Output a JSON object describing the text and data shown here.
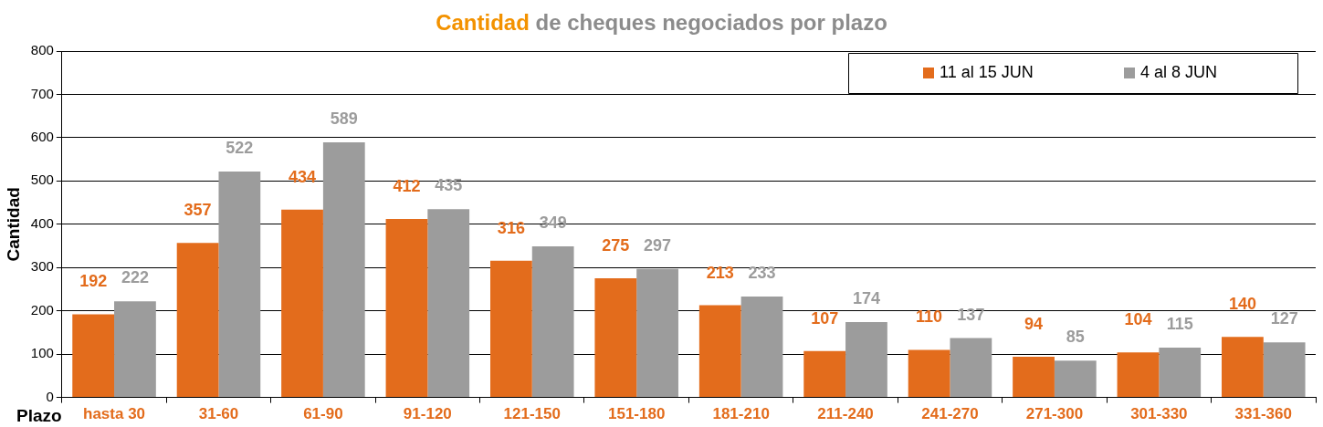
{
  "chart_data": {
    "type": "bar",
    "title": "Cantidad de cheques negociados por plazo",
    "xlabel": "Plazo",
    "ylabel": "Cantidad",
    "categories": [
      "hasta 30",
      "31-60",
      "61-90",
      "91-120",
      "121-150",
      "151-180",
      "181-210",
      "211-240",
      "241-270",
      "271-300",
      "301-330",
      "331-360"
    ],
    "series": [
      {
        "name": "11 al 15 JUN",
        "color": "#e36c1c",
        "values": [
          192,
          357,
          434,
          412,
          316,
          275,
          213,
          107,
          110,
          94,
          104,
          140
        ]
      },
      {
        "name": "4 al 8 JUN",
        "color": "#9c9c9c",
        "values": [
          222,
          522,
          589,
          435,
          349,
          297,
          233,
          174,
          137,
          85,
          115,
          127
        ]
      }
    ],
    "ylim": [
      0,
      800
    ],
    "yticks": [
      0,
      100,
      200,
      300,
      400,
      500,
      600,
      700,
      800
    ],
    "grid": "y",
    "legend": "top right",
    "data_labels": true
  }
}
